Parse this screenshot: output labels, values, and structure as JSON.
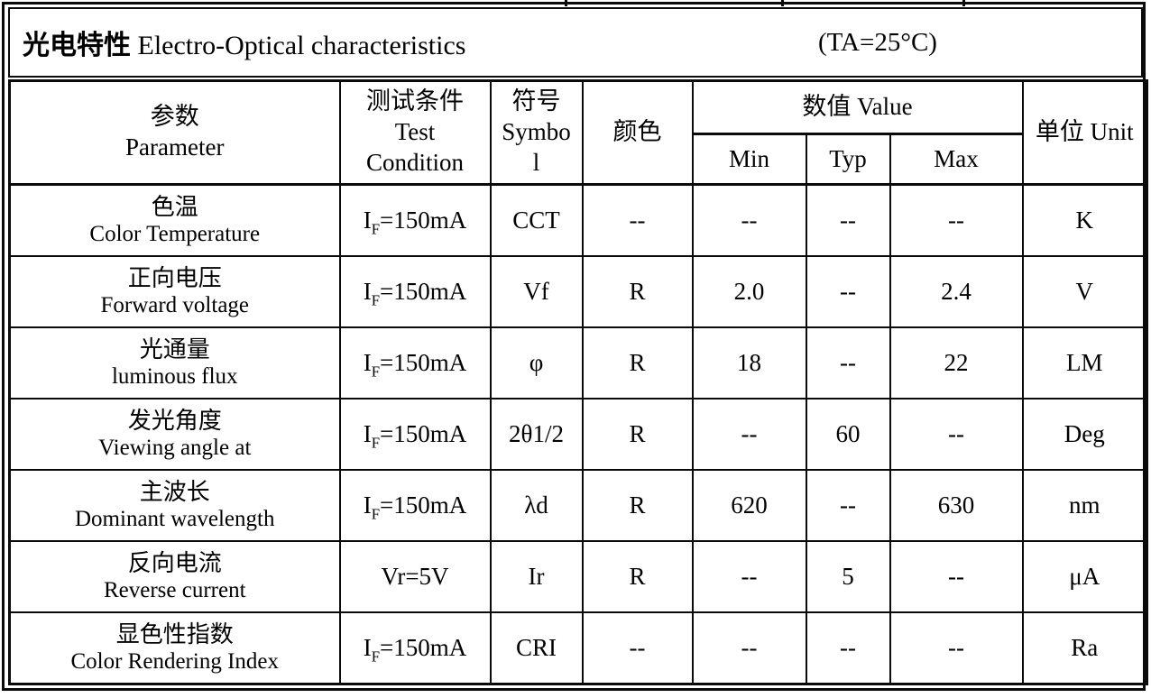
{
  "title": {
    "zh": "光电特性",
    "en": " Electro-Optical characteristics",
    "ta": "(TA=25°C)"
  },
  "table": {
    "headers": {
      "parameter_zh": "参数",
      "parameter_en": "Parameter",
      "test_condition_zh": "测试条件",
      "test_condition_en1": "Test",
      "test_condition_en2": "Condition",
      "symbol_zh": "符号",
      "symbol_en1": "Symbo",
      "symbol_en2": "l",
      "color": "颜色",
      "value": "数值 Value",
      "min": "Min",
      "typ": "Typ",
      "max": "Max",
      "unit": "单位 Unit"
    },
    "rows": [
      {
        "param_zh": "色温",
        "param_en": "Color Temperature",
        "cond_pre": "I",
        "cond_sub": "F",
        "cond_post": "=150mA",
        "symbol": "CCT",
        "color": "--",
        "min": "--",
        "typ": "--",
        "max": "--",
        "unit": "K"
      },
      {
        "param_zh": "正向电压",
        "param_en": "Forward voltage",
        "cond_pre": "I",
        "cond_sub": "F",
        "cond_post": "=150mA",
        "symbol": "Vf",
        "color": "R",
        "min": "2.0",
        "typ": "--",
        "max": "2.4",
        "unit": "V"
      },
      {
        "param_zh": "光通量",
        "param_en": "luminous flux",
        "cond_pre": "I",
        "cond_sub": "F",
        "cond_post": "=150mA",
        "symbol": "φ",
        "color": "R",
        "min": "18",
        "typ": "--",
        "max": "22",
        "unit": "LM"
      },
      {
        "param_zh": "发光角度",
        "param_en": "Viewing angle at",
        "cond_pre": "I",
        "cond_sub": "F",
        "cond_post": "=150mA",
        "symbol": "2θ1/2",
        "color": "R",
        "min": "--",
        "typ": "60",
        "max": "--",
        "unit": "Deg"
      },
      {
        "param_zh": "主波长",
        "param_en": "Dominant wavelength",
        "cond_pre": "I",
        "cond_sub": "F",
        "cond_post": "=150mA",
        "symbol": "λd",
        "color": "R",
        "min": "620",
        "typ": "--",
        "max": "630",
        "unit": "nm"
      },
      {
        "param_zh": "反向电流",
        "param_en": "Reverse current",
        "cond_pre": "Vr=5V",
        "cond_sub": "",
        "cond_post": "",
        "symbol": "Ir",
        "color": "R",
        "min": "--",
        "typ": "5",
        "max": "--",
        "unit": "μA"
      },
      {
        "param_zh": "显色性指数",
        "param_en": "Color Rendering Index",
        "cond_pre": "I",
        "cond_sub": "F",
        "cond_post": "=150mA",
        "symbol": "CRI",
        "color": "--",
        "min": "--",
        "typ": "--",
        "max": "--",
        "unit": "Ra"
      }
    ]
  },
  "colors": {
    "border": "#0a0a0a",
    "background": "#ffffff",
    "text": "#000000"
  }
}
